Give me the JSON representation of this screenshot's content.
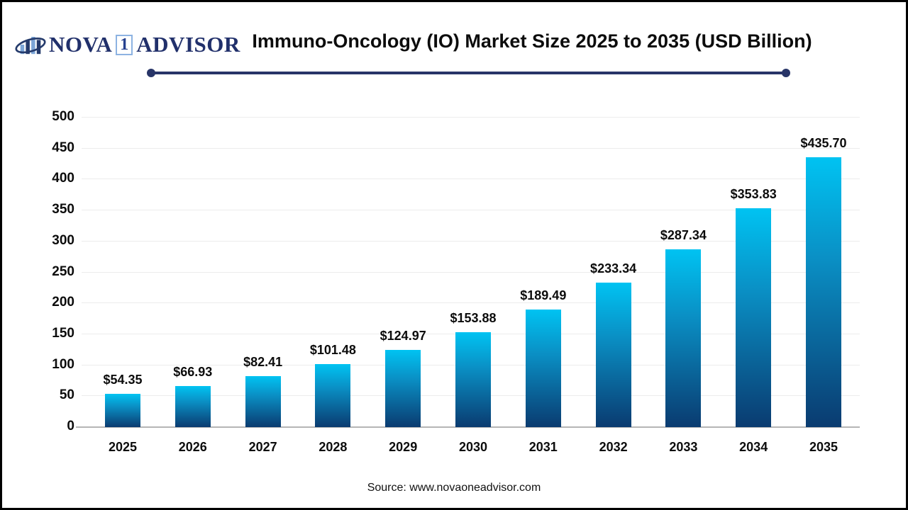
{
  "header": {
    "logo": {
      "word1": "NOVA",
      "digit": "1",
      "word2": "ADVISOR"
    },
    "title": "Immuno-Oncology (IO) Market Size 2025 to 2035 (USD Billion)"
  },
  "footer": {
    "source": "Source: www.novaoneadvisor.com"
  },
  "chart_data": {
    "type": "bar",
    "title": "Immuno-Oncology (IO) Market Size 2025 to 2035 (USD Billion)",
    "categories": [
      "2025",
      "2026",
      "2027",
      "2028",
      "2029",
      "2030",
      "2031",
      "2032",
      "2033",
      "2034",
      "2035"
    ],
    "values": [
      54.35,
      66.93,
      82.41,
      101.48,
      124.97,
      153.88,
      189.49,
      233.34,
      287.34,
      353.83,
      435.7
    ],
    "value_labels": [
      "$54.35",
      "$66.93",
      "$82.41",
      "$101.48",
      "$124.97",
      "$153.88",
      "$189.49",
      "$233.34",
      "$287.34",
      "$353.83",
      "$435.70"
    ],
    "yticks": [
      0,
      50,
      100,
      150,
      200,
      250,
      300,
      350,
      400,
      450,
      500
    ],
    "ylim": [
      0,
      500
    ],
    "xlabel": "",
    "ylabel": "",
    "grid": true,
    "legend": false,
    "unit": "USD Billion",
    "colors": {
      "bar_gradient_top": "#00c3f2",
      "bar_gradient_bottom": "#0a3b70",
      "gridline": "#ececec",
      "axis_line": "#b5b5b5",
      "divider": "#283568",
      "logo_navy": "#21306b",
      "logo_light_blue": "#7ca6d8",
      "title_text": "#0c0c0c"
    }
  }
}
